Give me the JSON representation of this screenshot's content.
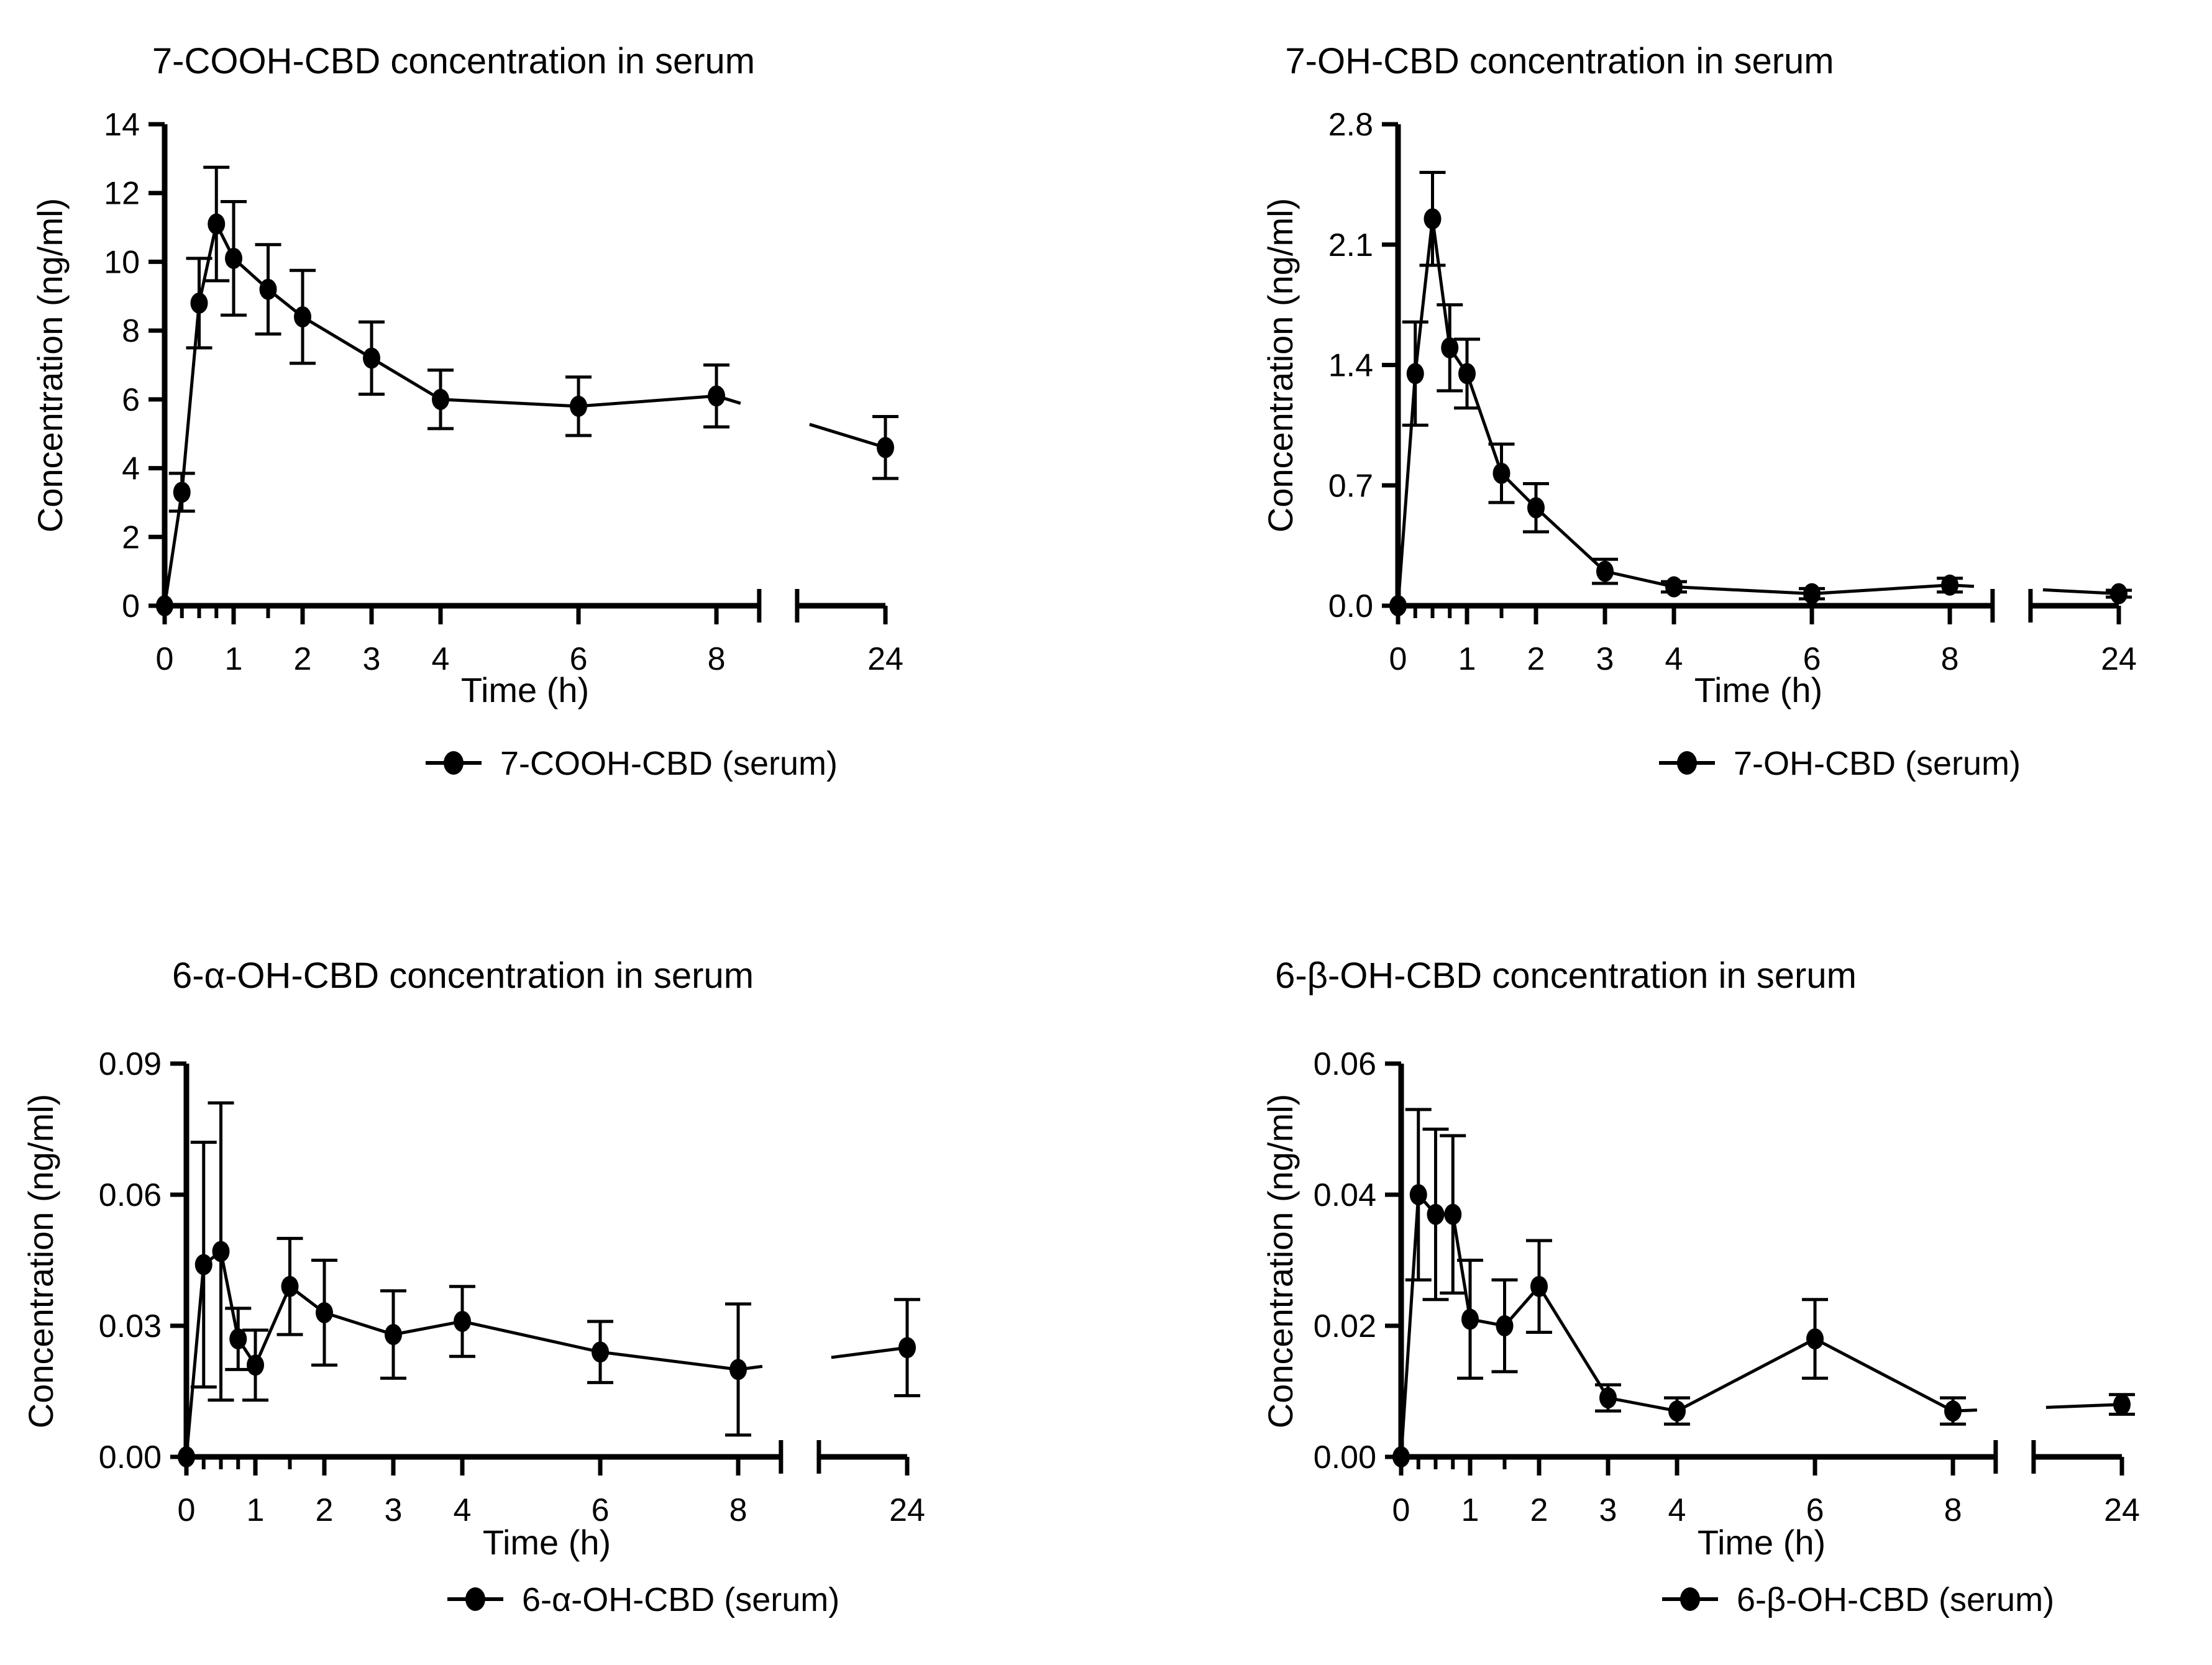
{
  "figure_background": "#ffffff",
  "stroke_color": "#000000",
  "chart_data": [
    {
      "type": "line",
      "title": "7-COOH-CBD concentration in serum",
      "xlabel": "Time (h)",
      "ylabel": "Concentration (ng/ml)",
      "legend": "7-COOH-CBD (serum)",
      "legend_position": "below",
      "marker": "filled-circle",
      "color": "#000000",
      "grid": false,
      "x": [
        0,
        0.25,
        0.5,
        0.75,
        1,
        1.5,
        2,
        3,
        4,
        6,
        8,
        24
      ],
      "values": [
        0,
        3.3,
        8.8,
        11.1,
        10.1,
        9.2,
        8.4,
        7.2,
        6.0,
        5.8,
        6.1,
        4.6
      ],
      "errors": [
        0,
        0.55,
        1.3,
        1.65,
        1.65,
        1.3,
        1.35,
        1.05,
        0.85,
        0.85,
        0.9,
        0.9
      ],
      "ylim": [
        0,
        14
      ],
      "yticks": [
        0,
        2,
        4,
        6,
        8,
        10,
        12,
        14
      ],
      "ytick_labels": [
        "0",
        "2",
        "4",
        "6",
        "8",
        "10",
        "12",
        "14"
      ],
      "xticks": [
        0,
        1,
        2,
        3,
        4,
        6,
        8,
        24
      ],
      "xtick_labels": [
        "0",
        "1",
        "2",
        "3",
        "4",
        "6",
        "8",
        "24"
      ],
      "x_minor_ticks": [
        0.25,
        0.5,
        0.75,
        1.5
      ],
      "axis_break_between": [
        8,
        24
      ]
    },
    {
      "type": "line",
      "title": "7-OH-CBD concentration in serum",
      "xlabel": "Time (h)",
      "ylabel": "Concentration (ng/ml)",
      "legend": "7-OH-CBD (serum)",
      "legend_position": "below",
      "marker": "filled-circle",
      "color": "#000000",
      "grid": false,
      "x": [
        0,
        0.25,
        0.5,
        0.75,
        1,
        1.5,
        2,
        3,
        4,
        6,
        8,
        24
      ],
      "values": [
        0,
        1.35,
        2.25,
        1.5,
        1.35,
        0.77,
        0.57,
        0.2,
        0.11,
        0.07,
        0.12,
        0.07
      ],
      "errors": [
        0,
        0.3,
        0.27,
        0.25,
        0.2,
        0.17,
        0.14,
        0.07,
        0.03,
        0.03,
        0.04,
        0.02
      ],
      "ylim": [
        0,
        2.8
      ],
      "yticks": [
        0,
        0.7,
        1.4,
        2.1,
        2.8
      ],
      "ytick_labels": [
        "0.0",
        "0.7",
        "1.4",
        "2.1",
        "2.8"
      ],
      "xticks": [
        0,
        1,
        2,
        3,
        4,
        6,
        8,
        24
      ],
      "xtick_labels": [
        "0",
        "1",
        "2",
        "3",
        "4",
        "6",
        "8",
        "24"
      ],
      "x_minor_ticks": [
        0.25,
        0.5,
        0.75,
        1.5
      ],
      "axis_break_between": [
        8,
        24
      ]
    },
    {
      "type": "line",
      "title": "6-α-OH-CBD concentration in serum",
      "xlabel": "Time (h)",
      "ylabel": "Concentration (ng/ml)",
      "legend": "6-α-OH-CBD (serum)",
      "legend_position": "below",
      "marker": "filled-circle",
      "color": "#000000",
      "grid": false,
      "x": [
        0,
        0.25,
        0.5,
        0.75,
        1,
        1.5,
        2,
        3,
        4,
        6,
        8,
        24
      ],
      "values": [
        0,
        0.044,
        0.047,
        0.027,
        0.021,
        0.039,
        0.033,
        0.028,
        0.031,
        0.024,
        0.02,
        0.025
      ],
      "errors": [
        0,
        0.028,
        0.034,
        0.007,
        0.008,
        0.011,
        0.012,
        0.01,
        0.008,
        0.007,
        0.015,
        0.011
      ],
      "ylim": [
        0,
        0.09
      ],
      "yticks": [
        0,
        0.03,
        0.06,
        0.09
      ],
      "ytick_labels": [
        "0.00",
        "0.03",
        "0.06",
        "0.09"
      ],
      "xticks": [
        0,
        1,
        2,
        3,
        4,
        6,
        8,
        24
      ],
      "xtick_labels": [
        "0",
        "1",
        "2",
        "3",
        "4",
        "6",
        "8",
        "24"
      ],
      "x_minor_ticks": [
        0.25,
        0.5,
        0.75,
        1.5
      ],
      "axis_break_between": [
        8,
        24
      ]
    },
    {
      "type": "line",
      "title": "6-β-OH-CBD concentration in serum",
      "xlabel": "Time (h)",
      "ylabel": "Concentration (ng/ml)",
      "legend": "6-β-OH-CBD (serum)",
      "legend_position": "below",
      "marker": "filled-circle",
      "color": "#000000",
      "grid": false,
      "x": [
        0,
        0.25,
        0.5,
        0.75,
        1,
        1.5,
        2,
        3,
        4,
        6,
        8,
        24
      ],
      "values": [
        0,
        0.04,
        0.037,
        0.037,
        0.021,
        0.02,
        0.026,
        0.009,
        0.007,
        0.018,
        0.007,
        0.008
      ],
      "errors": [
        0,
        0.013,
        0.013,
        0.012,
        0.009,
        0.007,
        0.007,
        0.002,
        0.002,
        0.006,
        0.002,
        0.0015
      ],
      "ylim": [
        0,
        0.06
      ],
      "yticks": [
        0,
        0.02,
        0.04,
        0.06
      ],
      "ytick_labels": [
        "0.00",
        "0.02",
        "0.04",
        "0.06"
      ],
      "xticks": [
        0,
        1,
        2,
        3,
        4,
        6,
        8,
        24
      ],
      "xtick_labels": [
        "0",
        "1",
        "2",
        "3",
        "4",
        "6",
        "8",
        "24"
      ],
      "x_minor_ticks": [
        0.25,
        0.5,
        0.75,
        1.5
      ],
      "axis_break_between": [
        8,
        24
      ]
    }
  ]
}
